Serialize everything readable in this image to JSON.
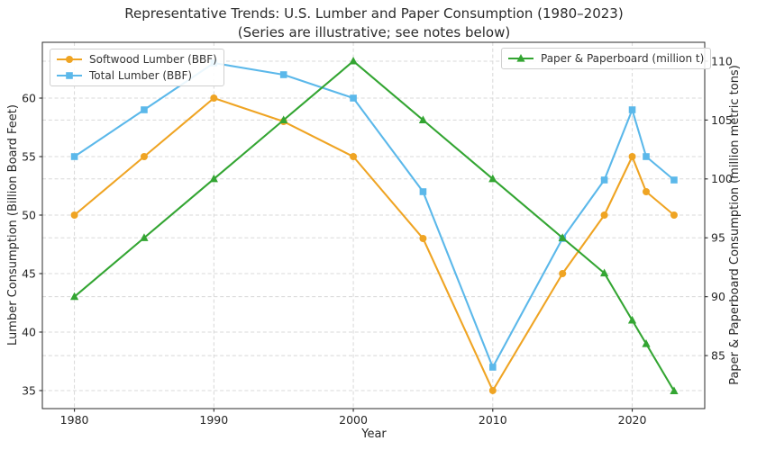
{
  "chart_data": {
    "type": "line",
    "title": "Representative Trends: U.S. Lumber and Paper Consumption (1980–2023)",
    "subtitle": "(Series are illustrative; see notes below)",
    "xlabel": "Year",
    "ylabel_left": "Lumber Consumption (Billion Board Feet)",
    "ylabel_right": "Paper & Paperboard Consumption (million metric tons)",
    "x": [
      1980,
      1985,
      1990,
      1995,
      2000,
      2005,
      2010,
      2015,
      2018,
      2020,
      2021,
      2023
    ],
    "x_ticks": [
      1980,
      1990,
      2000,
      2010,
      2020
    ],
    "xlim": [
      1977.7,
      2025.2
    ],
    "left_axis": {
      "ticks": [
        35,
        40,
        45,
        50,
        55,
        60
      ],
      "lim": [
        33.46,
        64.77
      ]
    },
    "right_axis": {
      "ticks": [
        85,
        90,
        95,
        100,
        105,
        110
      ],
      "lim": [
        80.5,
        111.6
      ]
    },
    "grid": true,
    "legend_left_position": "upper left",
    "legend_right_position": "upper right",
    "series": [
      {
        "name": "Softwood Lumber (BBF)",
        "axis": "left",
        "color": "#EFA423",
        "marker": "circle",
        "values": [
          50,
          55,
          60,
          58,
          55,
          48,
          35,
          45,
          50,
          55,
          52,
          50
        ]
      },
      {
        "name": "Total Lumber (BBF)",
        "axis": "left",
        "color": "#5BB8EA",
        "marker": "square",
        "values": [
          55,
          59,
          63,
          62,
          60,
          52,
          37,
          48,
          53,
          59,
          55,
          53
        ]
      },
      {
        "name": "Paper & Paperboard (million t)",
        "axis": "right",
        "color": "#33A532",
        "marker": "triangle",
        "values": [
          90,
          95,
          100,
          105,
          110,
          105,
          100,
          95,
          92,
          88,
          86,
          82
        ]
      }
    ]
  },
  "style": {
    "grid_color": "#d8d8d8",
    "spine_color": "#2b2b2b",
    "text_color": "#262626",
    "background": "#ffffff"
  }
}
